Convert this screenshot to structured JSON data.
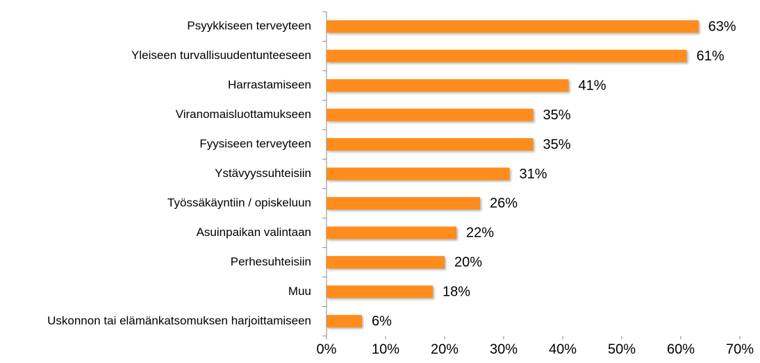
{
  "chart_data": {
    "type": "barh",
    "categories": [
      "Psyykkiseen terveyteen",
      "Yleiseen turvallisuudentunteeseen",
      "Harrastamiseen",
      "Viranomaisluottamukseen",
      "Fyysiseen terveyteen",
      "Ystävyyssuhteisiin",
      "Työssäkäyntiin / opiskeluun",
      "Asuinpaikan valintaan",
      "Perhesuhteisiin",
      "Muu",
      "Uskonnon tai elämänkatsomuksen harjoittamiseen"
    ],
    "values": [
      63,
      61,
      41,
      35,
      35,
      31,
      26,
      22,
      20,
      18,
      6
    ],
    "value_labels": [
      "63%",
      "61%",
      "41%",
      "35%",
      "35%",
      "31%",
      "26%",
      "22%",
      "20%",
      "18%",
      "6%"
    ],
    "color": "#ff8c1a",
    "xlim": [
      0,
      70
    ],
    "xticks": [
      {
        "value": 0,
        "label": "0%"
      },
      {
        "value": 10,
        "label": "10%"
      },
      {
        "value": 20,
        "label": "20%"
      },
      {
        "value": 30,
        "label": "30%"
      },
      {
        "value": 40,
        "label": "40%"
      },
      {
        "value": 50,
        "label": "50%"
      },
      {
        "value": 60,
        "label": "60%"
      },
      {
        "value": 70,
        "label": "70%"
      }
    ]
  }
}
